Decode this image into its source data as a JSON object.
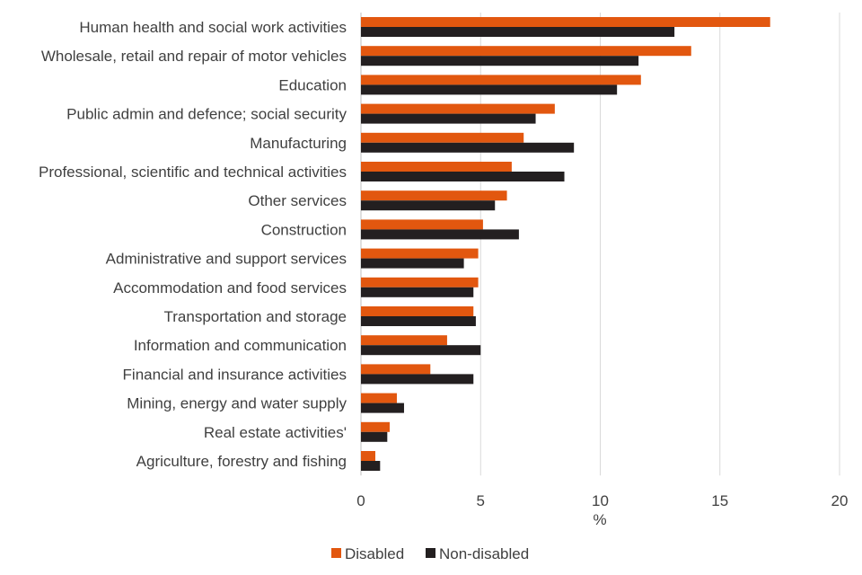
{
  "chart_data": {
    "type": "bar",
    "orientation": "horizontal",
    "categories": [
      "Human health and social work activities",
      "Wholesale, retail and repair of motor vehicles",
      "Education",
      "Public admin and defence; social security",
      "Manufacturing",
      "Professional, scientific and technical activities",
      "Other services",
      "Construction",
      "Administrative and support services",
      "Accommodation and food services",
      "Transportation and storage",
      "Information and communication",
      "Financial and insurance activities",
      "Mining, energy and water supply",
      "Real estate activities'",
      "Agriculture, forestry and fishing"
    ],
    "series": [
      {
        "name": "Disabled",
        "color": "#E2570F",
        "values": [
          17.1,
          13.8,
          11.7,
          8.1,
          6.8,
          6.3,
          6.1,
          5.1,
          4.9,
          4.9,
          4.7,
          3.6,
          2.9,
          1.5,
          1.2,
          0.6
        ]
      },
      {
        "name": "Non-disabled",
        "color": "#231F20",
        "values": [
          13.1,
          11.6,
          10.7,
          7.3,
          8.9,
          8.5,
          5.6,
          6.6,
          4.3,
          4.7,
          4.8,
          5.0,
          4.7,
          1.8,
          1.1,
          0.8
        ]
      }
    ],
    "x_ticks": [
      "0",
      "5",
      "10",
      "15",
      "20"
    ],
    "xlim": [
      0,
      20
    ],
    "xlabel": "%",
    "ylabel": "",
    "title": "",
    "grid": true,
    "legend_position": "bottom"
  }
}
